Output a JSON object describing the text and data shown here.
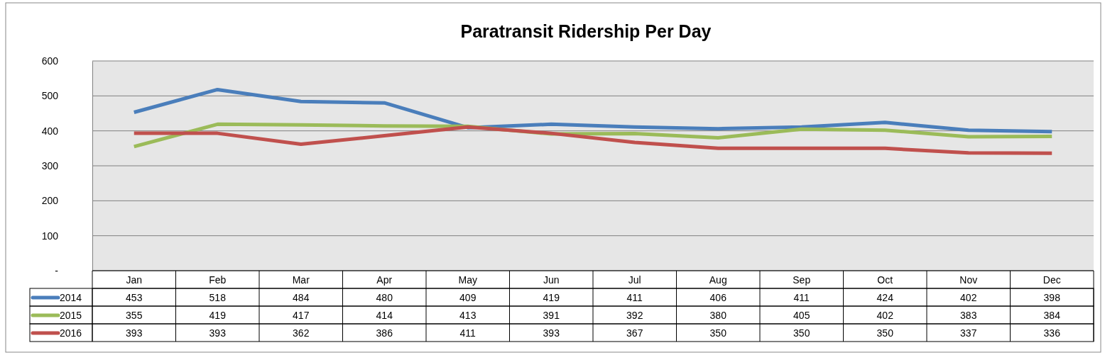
{
  "chart_data": {
    "type": "line",
    "title": "Paratransit Ridership Per Day",
    "categories": [
      "Jan",
      "Feb",
      "Mar",
      "Apr",
      "May",
      "Jun",
      "Jul",
      "Aug",
      "Sep",
      "Oct",
      "Nov",
      "Dec"
    ],
    "series": [
      {
        "name": "2014",
        "color": "#4a7ebb",
        "values": [
          453,
          518,
          484,
          480,
          409,
          419,
          411,
          406,
          411,
          424,
          402,
          398
        ]
      },
      {
        "name": "2015",
        "color": "#9bbb59",
        "values": [
          355,
          419,
          417,
          414,
          413,
          391,
          392,
          380,
          405,
          402,
          383,
          384
        ]
      },
      {
        "name": "2016",
        "color": "#c0504d",
        "values": [
          393,
          393,
          362,
          386,
          411,
          393,
          367,
          350,
          350,
          350,
          337,
          336
        ]
      }
    ],
    "ylim": [
      0,
      600
    ],
    "yticks": [
      {
        "value": 0,
        "label": "-"
      },
      100,
      200,
      300,
      400,
      500,
      600
    ],
    "grid": "y",
    "legend": "left",
    "data_labels": true,
    "marker": "none",
    "line_style": "solid"
  }
}
